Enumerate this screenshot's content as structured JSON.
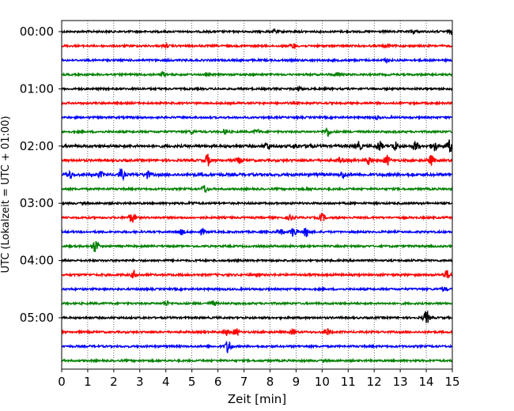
{
  "chart_data": {
    "type": "line",
    "title": "",
    "xlabel": "Zeit  [min]",
    "ylabel": "UTC (Lokalzeit = UTC + 01:00)",
    "xlim": [
      0,
      15
    ],
    "x_ticks": [
      0,
      1,
      2,
      3,
      4,
      5,
      6,
      7,
      8,
      9,
      10,
      11,
      12,
      13,
      14,
      15
    ],
    "x_tick_labels": [
      "0",
      "1",
      "2",
      "3",
      "4",
      "5",
      "6",
      "7",
      "8",
      "9",
      "10",
      "11",
      "12",
      "13",
      "14",
      "15"
    ],
    "y_tick_labels": [
      "00:00",
      "01:00",
      "02:00",
      "03:00",
      "04:00",
      "05:00"
    ],
    "trace_interval_minutes": 15,
    "grid": "vertical-dotted",
    "color_cycle": [
      "#000000",
      "#ff0000",
      "#0000ff",
      "#008000"
    ],
    "traces": [
      {
        "start": "00:00",
        "color": "#000000",
        "noise": 1.0,
        "events": [
          {
            "t": 8.2,
            "a": 2.0
          },
          {
            "t": 13.5,
            "a": 2.0
          },
          {
            "t": 15.0,
            "a": 3.0
          }
        ]
      },
      {
        "start": "00:15",
        "color": "#ff0000",
        "noise": 1.0,
        "events": [
          {
            "t": 4.0,
            "a": 1.5
          },
          {
            "t": 8.9,
            "a": 3.0
          },
          {
            "t": 12.5,
            "a": 2.0
          }
        ]
      },
      {
        "start": "00:30",
        "color": "#0000ff",
        "noise": 1.0,
        "events": [
          {
            "t": 12.5,
            "a": 2.0
          }
        ]
      },
      {
        "start": "00:45",
        "color": "#008000",
        "noise": 1.0,
        "events": [
          {
            "t": 3.9,
            "a": 2.5
          },
          {
            "t": 10.6,
            "a": 2.0
          }
        ]
      },
      {
        "start": "01:00",
        "color": "#000000",
        "noise": 1.0,
        "events": [
          {
            "t": 9.1,
            "a": 1.5
          }
        ]
      },
      {
        "start": "01:15",
        "color": "#ff0000",
        "noise": 1.0,
        "events": []
      },
      {
        "start": "01:30",
        "color": "#0000ff",
        "noise": 1.0,
        "events": [
          {
            "t": 12.1,
            "a": 1.5
          }
        ]
      },
      {
        "start": "01:45",
        "color": "#008000",
        "noise": 1.0,
        "events": [
          {
            "t": 5.0,
            "a": 2.0
          },
          {
            "t": 6.3,
            "a": 3.0
          },
          {
            "t": 7.5,
            "a": 2.5
          },
          {
            "t": 10.2,
            "a": 6.0
          }
        ]
      },
      {
        "start": "02:00",
        "color": "#000000",
        "noise": 1.3,
        "events": [
          {
            "t": 7.9,
            "a": 4.5
          },
          {
            "t": 9.0,
            "a": 3.0
          },
          {
            "t": 9.5,
            "a": 3.0
          },
          {
            "t": 11.4,
            "a": 5.0
          },
          {
            "t": 12.2,
            "a": 6.0
          },
          {
            "t": 12.8,
            "a": 5.0
          },
          {
            "t": 13.6,
            "a": 6.0
          },
          {
            "t": 14.3,
            "a": 6.0
          },
          {
            "t": 14.9,
            "a": 7.0
          }
        ]
      },
      {
        "start": "02:15",
        "color": "#ff0000",
        "noise": 1.2,
        "events": [
          {
            "t": 5.6,
            "a": 7.0
          },
          {
            "t": 6.8,
            "a": 3.0
          },
          {
            "t": 10.7,
            "a": 3.0
          },
          {
            "t": 11.8,
            "a": 5.0
          },
          {
            "t": 12.5,
            "a": 6.0
          },
          {
            "t": 14.2,
            "a": 6.0
          }
        ]
      },
      {
        "start": "02:30",
        "color": "#0000ff",
        "noise": 1.4,
        "events": [
          {
            "t": 0.3,
            "a": 4.0
          },
          {
            "t": 1.5,
            "a": 3.0
          },
          {
            "t": 2.3,
            "a": 6.0
          },
          {
            "t": 3.3,
            "a": 4.0
          },
          {
            "t": 10.8,
            "a": 4.0
          }
        ]
      },
      {
        "start": "02:45",
        "color": "#008000",
        "noise": 1.0,
        "events": [
          {
            "t": 5.5,
            "a": 5.0
          },
          {
            "t": 9.5,
            "a": 1.5
          }
        ]
      },
      {
        "start": "03:00",
        "color": "#000000",
        "noise": 1.0,
        "events": [
          {
            "t": 5.0,
            "a": 1.5
          }
        ]
      },
      {
        "start": "03:15",
        "color": "#ff0000",
        "noise": 1.0,
        "events": [
          {
            "t": 2.7,
            "a": 6.0
          },
          {
            "t": 8.8,
            "a": 3.0
          },
          {
            "t": 10.0,
            "a": 5.0
          }
        ]
      },
      {
        "start": "03:30",
        "color": "#0000ff",
        "noise": 1.0,
        "events": [
          {
            "t": 4.6,
            "a": 3.0
          },
          {
            "t": 5.4,
            "a": 3.0
          },
          {
            "t": 8.4,
            "a": 3.0
          },
          {
            "t": 8.9,
            "a": 6.0
          },
          {
            "t": 9.4,
            "a": 6.0
          }
        ]
      },
      {
        "start": "03:45",
        "color": "#008000",
        "noise": 1.0,
        "events": [
          {
            "t": 1.3,
            "a": 8.0
          }
        ]
      },
      {
        "start": "04:00",
        "color": "#000000",
        "noise": 1.0,
        "events": []
      },
      {
        "start": "04:15",
        "color": "#ff0000",
        "noise": 1.1,
        "events": [
          {
            "t": 2.8,
            "a": 5.0
          },
          {
            "t": 14.8,
            "a": 5.0
          }
        ]
      },
      {
        "start": "04:30",
        "color": "#0000ff",
        "noise": 1.0,
        "events": [
          {
            "t": 14.7,
            "a": 2.0
          }
        ]
      },
      {
        "start": "04:45",
        "color": "#008000",
        "noise": 1.0,
        "events": [
          {
            "t": 4.0,
            "a": 3.0
          },
          {
            "t": 5.8,
            "a": 3.0
          }
        ]
      },
      {
        "start": "05:00",
        "color": "#000000",
        "noise": 1.0,
        "events": [
          {
            "t": 14.0,
            "a": 8.0
          }
        ]
      },
      {
        "start": "05:15",
        "color": "#ff0000",
        "noise": 1.0,
        "events": [
          {
            "t": 6.3,
            "a": 4.0
          },
          {
            "t": 6.7,
            "a": 4.0
          },
          {
            "t": 8.9,
            "a": 3.0
          },
          {
            "t": 10.2,
            "a": 4.0
          }
        ]
      },
      {
        "start": "05:30",
        "color": "#0000ff",
        "noise": 1.0,
        "events": [
          {
            "t": 6.4,
            "a": 9.0
          }
        ]
      },
      {
        "start": "05:45",
        "color": "#008000",
        "noise": 1.0,
        "events": []
      }
    ]
  }
}
